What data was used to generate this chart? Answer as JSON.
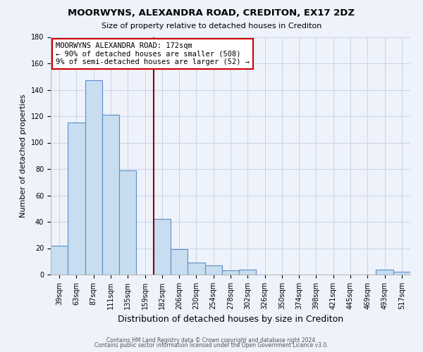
{
  "title": "MOORWYNS, ALEXANDRA ROAD, CREDITON, EX17 2DZ",
  "subtitle": "Size of property relative to detached houses in Crediton",
  "xlabel": "Distribution of detached houses by size in Crediton",
  "ylabel": "Number of detached properties",
  "footer_line1": "Contains HM Land Registry data © Crown copyright and database right 2024.",
  "footer_line2": "Contains public sector information licensed under the Open Government Licence v3.0.",
  "bin_labels": [
    "39sqm",
    "63sqm",
    "87sqm",
    "111sqm",
    "135sqm",
    "159sqm",
    "182sqm",
    "206sqm",
    "230sqm",
    "254sqm",
    "278sqm",
    "302sqm",
    "326sqm",
    "350sqm",
    "374sqm",
    "398sqm",
    "421sqm",
    "445sqm",
    "469sqm",
    "493sqm",
    "517sqm"
  ],
  "bar_heights": [
    22,
    115,
    147,
    121,
    79,
    0,
    42,
    19,
    9,
    7,
    3,
    4,
    0,
    0,
    0,
    0,
    0,
    0,
    0,
    4,
    2
  ],
  "bar_color": "#c8ddf0",
  "bar_edge_color": "#5b8dc8",
  "vline_x_index": 6,
  "vline_color": "#8b0000",
  "annotation_title": "MOORWYNS ALEXANDRA ROAD: 172sqm",
  "annotation_line1": "← 90% of detached houses are smaller (508)",
  "annotation_line2": "9% of semi-detached houses are larger (52) →",
  "annotation_box_facecolor": "#ffffff",
  "annotation_box_edgecolor": "#cc0000",
  "ylim": [
    0,
    180
  ],
  "yticks": [
    0,
    20,
    40,
    60,
    80,
    100,
    120,
    140,
    160,
    180
  ],
  "grid_color": "#c8d4e8",
  "background_color": "#eef2fa"
}
